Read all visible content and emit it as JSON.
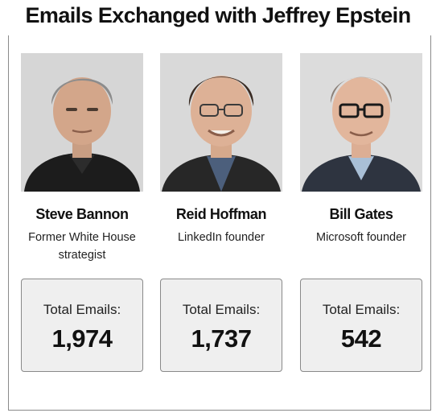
{
  "title": "Emails Exchanged with Jeffrey Epstein",
  "people": [
    {
      "name": "Steve Bannon",
      "role": "Former White House strategist",
      "email_label": "Total Emails:",
      "email_count": "1,974",
      "photo_icon": "portrait-photo"
    },
    {
      "name": "Reid Hoffman",
      "role": "LinkedIn founder",
      "email_label": "Total Emails:",
      "email_count": "1,737",
      "photo_icon": "portrait-photo"
    },
    {
      "name": "Bill Gates",
      "role": "Microsoft founder",
      "email_label": "Total Emails:",
      "email_count": "542",
      "photo_icon": "portrait-photo"
    }
  ],
  "colors": {
    "box_background": "#efefef",
    "box_border": "#8a8a8a",
    "photo_background": "#d7d7d7",
    "text": "#111111"
  }
}
